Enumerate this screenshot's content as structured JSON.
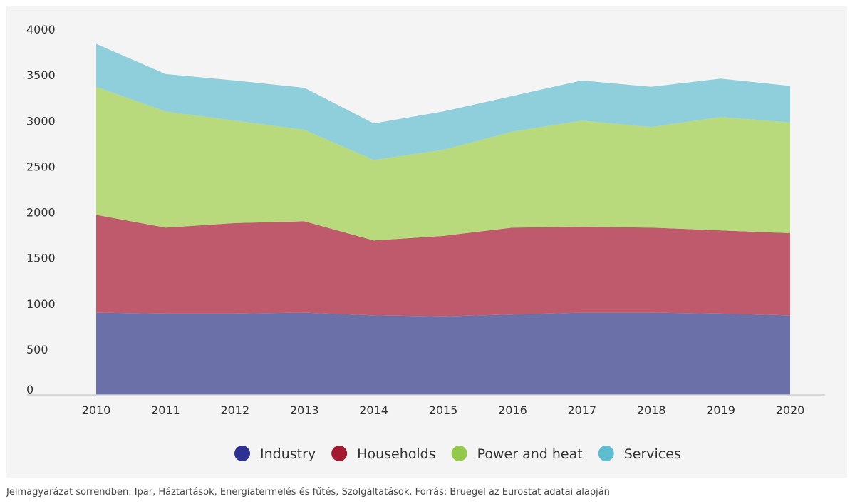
{
  "chart_data": {
    "type": "area",
    "stacked": true,
    "x": [
      "2010",
      "2011",
      "2012",
      "2013",
      "2014",
      "2015",
      "2016",
      "2017",
      "2018",
      "2019",
      "2020"
    ],
    "ylim": [
      0,
      4000
    ],
    "yticks": [
      0,
      500,
      1000,
      1500,
      2000,
      2500,
      3000,
      3500,
      4000
    ],
    "grid": false,
    "legend_position": "bottom",
    "series": [
      {
        "name": "Industry",
        "color": "#2e3192",
        "fill": "#6b70a8",
        "values": [
          900,
          890,
          890,
          900,
          870,
          860,
          880,
          900,
          900,
          890,
          870
        ]
      },
      {
        "name": "Households",
        "color": "#a3192f",
        "fill": "#be5a6c",
        "values": [
          1070,
          940,
          990,
          1000,
          820,
          880,
          950,
          940,
          930,
          910,
          900
        ]
      },
      {
        "name": "Power and heat",
        "color": "#94c84a",
        "fill": "#b8d97c",
        "values": [
          1400,
          1270,
          1120,
          1000,
          880,
          940,
          1050,
          1160,
          1100,
          1240,
          1210
        ]
      },
      {
        "name": "Services",
        "color": "#5fbdd0",
        "fill": "#8fcfdb",
        "values": [
          470,
          410,
          440,
          460,
          400,
          420,
          390,
          440,
          440,
          420,
          400
        ]
      }
    ]
  },
  "caption": "Jelmagyarázat sorrendben: Ipar, Háztartások, Energiatermelés és fűtés, Szolgáltatások. Forrás: Bruegel az Eurostat adatai alapján"
}
